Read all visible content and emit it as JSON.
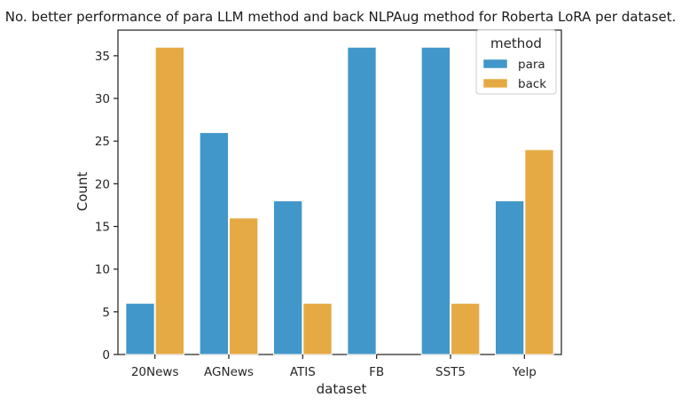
{
  "chart_data": {
    "type": "bar",
    "title": "No. better performance of para LLM method and back NLPAug method for Roberta LoRA per dataset.",
    "xlabel": "dataset",
    "ylabel": "Count",
    "categories": [
      "20News",
      "AGNews",
      "ATIS",
      "FB",
      "SST5",
      "Yelp"
    ],
    "series": [
      {
        "name": "para",
        "values": [
          6,
          26,
          18,
          36,
          36,
          18
        ],
        "color": "#4197c9"
      },
      {
        "name": "back",
        "values": [
          36,
          16,
          6,
          0,
          6,
          24
        ],
        "color": "#e6aa44"
      }
    ],
    "ylim": [
      0,
      38
    ],
    "yticks": [
      0,
      5,
      10,
      15,
      20,
      25,
      30,
      35
    ],
    "grid": false,
    "legend": {
      "title": "method",
      "placement": "top-right"
    }
  }
}
